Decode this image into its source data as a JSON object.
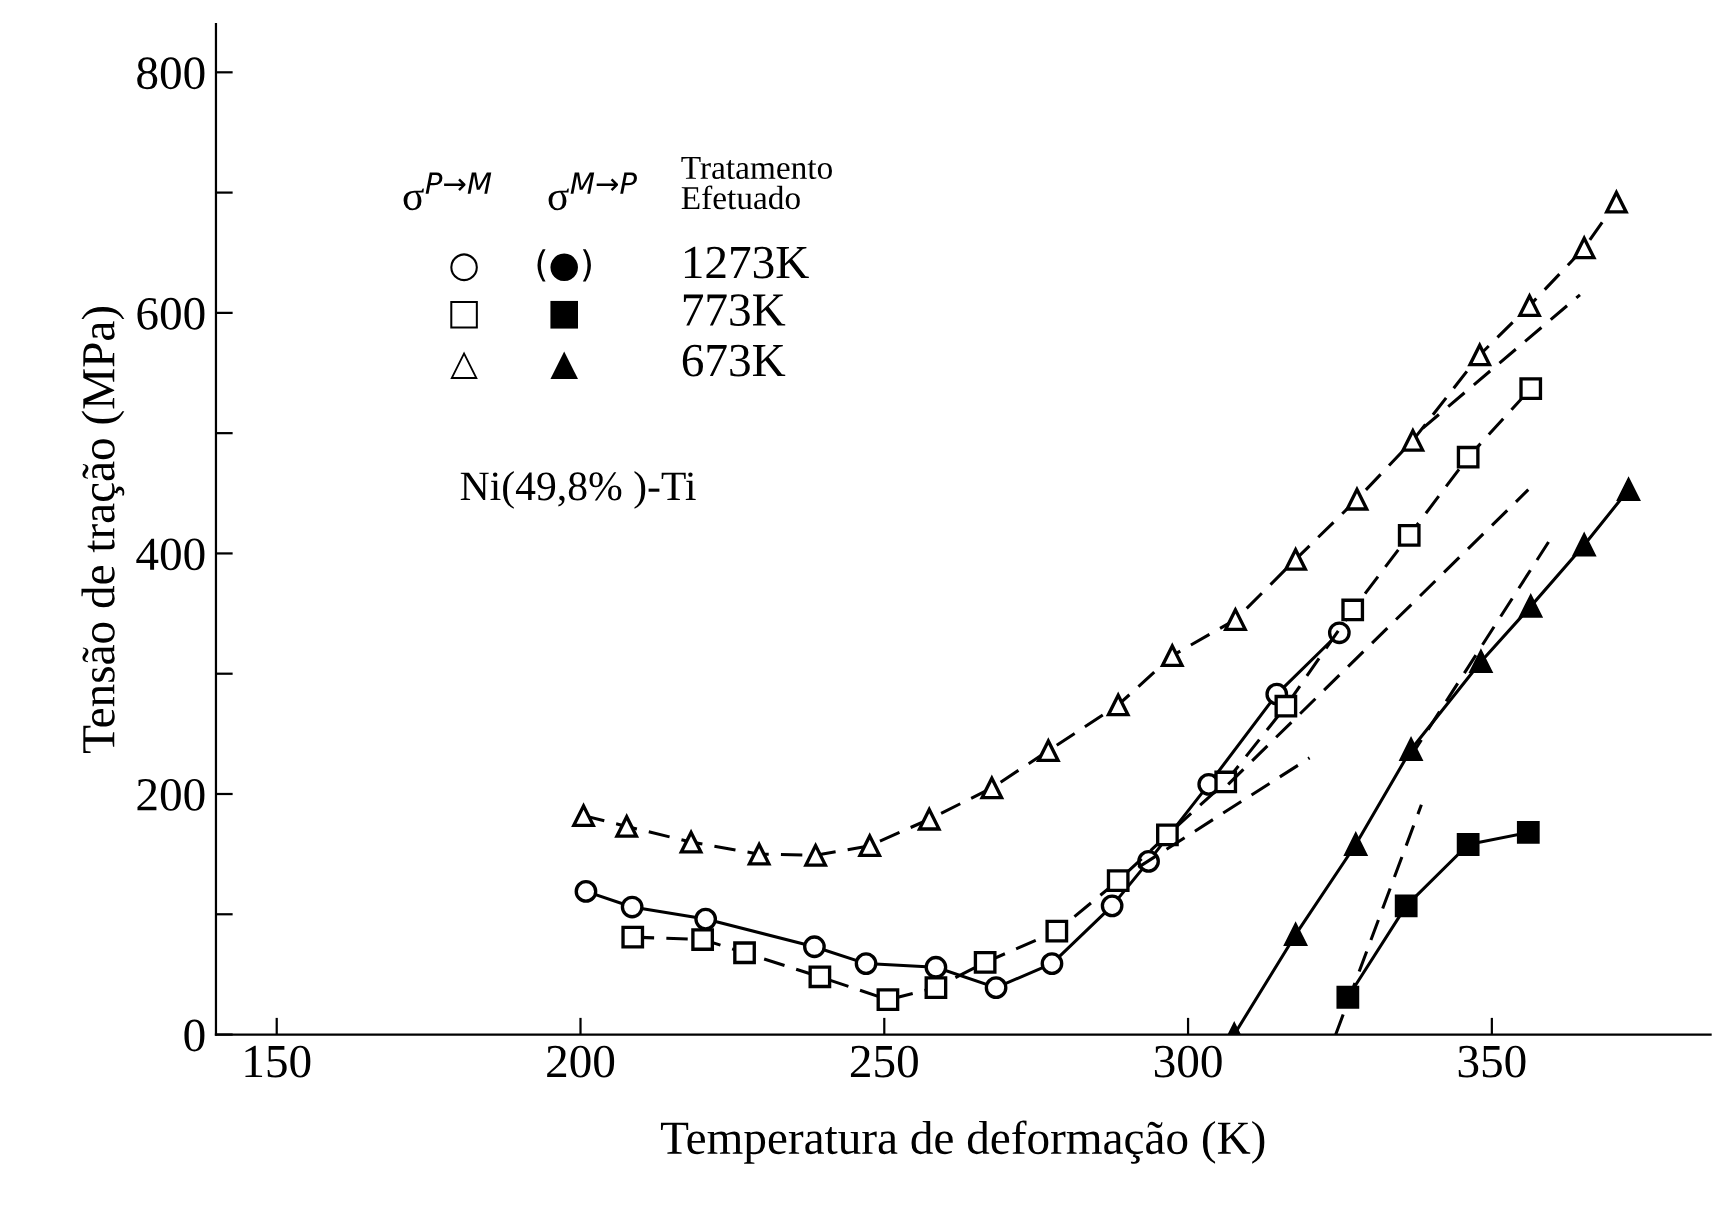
{
  "chart_data": {
    "type": "line",
    "xlabel": "Temperatura de deformação (K)",
    "ylabel": "Tensão de tração (MPa)",
    "xlim": [
      140,
      386
    ],
    "xticks": [
      150,
      200,
      250,
      300,
      350
    ],
    "ylim": [
      0,
      840
    ],
    "yticks": [
      0,
      {
        "value": 100,
        "label": null
      },
      200,
      {
        "value": 300,
        "label": null
      },
      400,
      {
        "value": 500,
        "label": null
      },
      600,
      {
        "value": 700,
        "label": null
      },
      800
    ],
    "grid": false,
    "annotations": [
      "σ$^{P→M}$",
      "σ$^{M→P}$",
      "Tratamento\nEfetuado",
      "○",
      "(●)",
      "1273K",
      "□",
      "■",
      "773K",
      "△",
      "▲",
      "673K",
      "Ni(49,8% )-Ti"
    ],
    "series": [
      {
        "color": "#000000",
        "marker": "circle",
        "line_style": "solid",
        "x": [
          200.9,
          208.5,
          220.6,
          238.5,
          247,
          258.5,
          268.4,
          277.6,
          287.5,
          293.5,
          303.4,
          314.6,
          324.9
        ],
        "values": [
          119,
          106,
          96,
          73,
          59,
          56,
          39,
          59,
          107,
          144,
          208,
          283,
          334
        ]
      },
      {
        "color": "#000000",
        "marker": "square",
        "line_style": "dashed",
        "x": [
          208.6,
          220.1,
          227,
          239.4,
          250.6,
          258.5,
          266.6,
          278.4,
          288.5,
          296.6,
          306.2,
          316.1,
          327.1,
          336.4,
          346.1,
          356.4
        ],
        "values": [
          81,
          79,
          68,
          48,
          29,
          39,
          60,
          86,
          128,
          166,
          210,
          273,
          353,
          415,
          480,
          537
        ]
      },
      {
        "color": "#000000",
        "marker": "square",
        "line_style": "solid",
        "x": [
          326.3,
          335.9,
          346.1,
          356
        ],
        "values": [
          31,
          107,
          158,
          168
        ]
      },
      {
        "color": "#000000",
        "marker": "triangle",
        "line_style": "dashed",
        "x": [
          200.5,
          207.6,
          218.2,
          229.4,
          238.7,
          247.6,
          257.4,
          267.7,
          277,
          288.5,
          297.4,
          307.8,
          317.7,
          327.8,
          337,
          348,
          356.2,
          365.2,
          370.5
        ],
        "values": [
          182,
          173,
          160,
          150,
          149,
          157,
          179,
          205,
          236,
          274,
          315,
          345,
          395,
          445,
          494,
          565,
          606,
          654,
          692
        ]
      },
      {
        "color": "#000000",
        "marker": "triangle",
        "line_style": "solid",
        "x": [
          307.6,
          317.7,
          327.6,
          336.7,
          348.2,
          356.4,
          365.2,
          372.5
        ],
        "values": [
          0,
          83,
          158,
          237,
          310,
          356,
          407,
          453
        ]
      },
      {
        "color": "#000000",
        "marker": "none",
        "line_style": "dashed",
        "x": [
          324.3,
          338.4
        ],
        "values": [
          0,
          191
        ]
      },
      {
        "color": "#000000",
        "marker": "none",
        "line_style": "dashed",
        "x": [
          336.5,
          359.9
        ],
        "values": [
          230,
          414
        ]
      },
      {
        "color": "#000000",
        "marker": "none",
        "line_style": "dashed",
        "x": [
          306.6,
          356
        ],
        "values": [
          208,
          453
        ]
      },
      {
        "color": "#000000",
        "marker": "none",
        "line_style": "dashed",
        "x": [
          291.8,
          320
        ],
        "values": [
          139,
          230
        ]
      },
      {
        "color": "#000000",
        "marker": "none",
        "line_style": "dashed",
        "x": [
          338.6,
          364.5
        ],
        "values": [
          504,
          615
        ]
      }
    ]
  }
}
